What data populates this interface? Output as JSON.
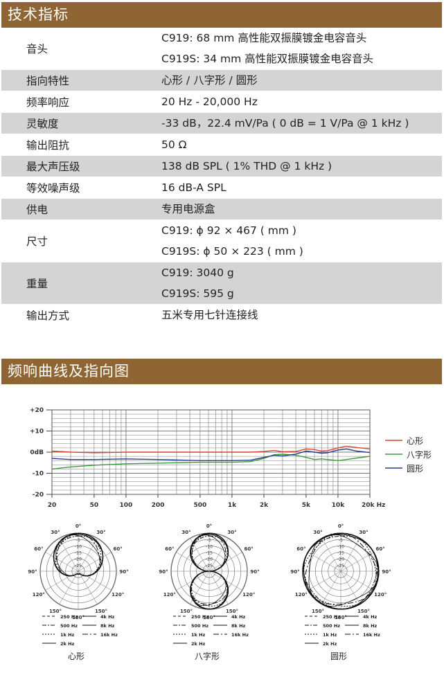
{
  "sections": {
    "specs_title": "技术指标",
    "curves_title": "频响曲线及指向图"
  },
  "specs": [
    {
      "label": "音头",
      "values": [
        "C919: 68 mm 高性能双振膜镀金电容音头",
        "C919S: 34 mm 高性能双振膜镀金电容音头"
      ]
    },
    {
      "label": "指向特性",
      "values": [
        "心形 / 八字形 / 圆形"
      ]
    },
    {
      "label": "频率响应",
      "values": [
        "20 Hz - 20,000 Hz"
      ]
    },
    {
      "label": "灵敏度",
      "values": [
        "-33 dB，22.4 mV/Pa ( 0 dB = 1 V/Pa @ 1 kHz )"
      ]
    },
    {
      "label": "输出阻抗",
      "values": [
        "50 Ω"
      ]
    },
    {
      "label": "最大声压级",
      "values": [
        "138 dB SPL ( 1% THD @ 1 kHz )"
      ]
    },
    {
      "label": "等效噪声级",
      "values": [
        "16 dB-A SPL"
      ]
    },
    {
      "label": "供电",
      "values": [
        "专用电源盒"
      ]
    },
    {
      "label": "尺寸",
      "values": [
        "C919: ϕ 92 × 467 ( mm )",
        "C919S: ϕ 50 × 223 ( mm )"
      ]
    },
    {
      "label": "重量",
      "values": [
        "C919: 3040 g",
        "C919S: 595 g"
      ]
    },
    {
      "label": "输出方式",
      "values": [
        "五米专用七针连接线"
      ]
    }
  ],
  "chart_data": [
    {
      "type": "line",
      "x_scale": "log",
      "xlim": [
        20,
        20000
      ],
      "ylim": [
        -20,
        20
      ],
      "x_ticks": [
        20,
        50,
        100,
        200,
        500,
        1000,
        2000,
        5000,
        10000,
        20000
      ],
      "x_tick_labels": [
        "20",
        "50",
        "100",
        "200",
        "500",
        "1k",
        "2k",
        "5k",
        "10k",
        "20k Hz"
      ],
      "y_ticks": [
        20,
        10,
        0,
        -10,
        -20
      ],
      "y_tick_labels": [
        "+20",
        "+10",
        "0dB",
        "-10",
        "-20"
      ],
      "grid": true,
      "legend_position": "right",
      "series": [
        {
          "name": "心形",
          "color": "#d9452b",
          "x": [
            20,
            30,
            50,
            100,
            200,
            500,
            1000,
            1500,
            2000,
            2500,
            3000,
            4000,
            5000,
            6000,
            7000,
            8000,
            10000,
            12000,
            15000,
            20000
          ],
          "y": [
            0.5,
            0,
            -0.3,
            0,
            0,
            0,
            0,
            0,
            0.3,
            0.8,
            0.2,
            0.3,
            1.5,
            1.2,
            0.5,
            0.7,
            2.0,
            2.8,
            2.2,
            1.5
          ]
        },
        {
          "name": "八字形",
          "color": "#3a9a3a",
          "x": [
            20,
            30,
            50,
            100,
            200,
            500,
            1000,
            1500,
            2000,
            2500,
            3000,
            4000,
            5000,
            6000,
            7000,
            8000,
            10000,
            12000,
            15000,
            20000
          ],
          "y": [
            -8,
            -7,
            -6.2,
            -5.5,
            -5.2,
            -4.8,
            -4.8,
            -4.5,
            -3.0,
            -1.2,
            -1.0,
            -1.5,
            -2.5,
            -3.5,
            -3.2,
            -3.5,
            -4.0,
            -3.5,
            -2.8,
            -2.0
          ]
        },
        {
          "name": "圆形",
          "color": "#2a3a8a",
          "x": [
            20,
            30,
            50,
            100,
            200,
            500,
            1000,
            1500,
            2000,
            2500,
            3000,
            4000,
            5000,
            6000,
            7000,
            8000,
            10000,
            12000,
            15000,
            20000
          ],
          "y": [
            -3,
            -3.5,
            -3.5,
            -3.2,
            -3.5,
            -4,
            -4,
            -3.8,
            -2.5,
            -1.5,
            -1.8,
            -1.0,
            0.5,
            0,
            -0.5,
            -0.3,
            1.0,
            1.5,
            0.5,
            -0.2
          ]
        }
      ]
    },
    {
      "type": "polar",
      "pattern": "cardioid",
      "label": "心形",
      "angle_labels": [
        "0°",
        "30°",
        "60°",
        "90°",
        "120°",
        "150°",
        "180°",
        "150°",
        "120°",
        "90°",
        "60°",
        "30°"
      ],
      "ring_labels": [
        "-5",
        "-10",
        "-15",
        "-20",
        "-25"
      ],
      "legend": [
        "250 Hz",
        "4k Hz",
        "500 Hz",
        "8k Hz",
        "1k Hz",
        "16k Hz",
        "2k Hz"
      ]
    },
    {
      "type": "polar",
      "pattern": "figure-eight",
      "label": "八字形",
      "angle_labels": [
        "0°",
        "30°",
        "60°",
        "90°",
        "120°",
        "150°",
        "180°",
        "150°",
        "120°",
        "90°",
        "60°",
        "30°"
      ],
      "ring_labels": [
        "-5",
        "-10",
        "-15",
        "-20",
        "-25"
      ],
      "legend": [
        "250 Hz",
        "4k Hz",
        "500 Hz",
        "8k Hz",
        "1k Hz",
        "16k Hz",
        "2k Hz"
      ]
    },
    {
      "type": "polar",
      "pattern": "omni",
      "label": "圆形",
      "angle_labels": [
        "0°",
        "30°",
        "60°",
        "90°",
        "120°",
        "150°",
        "180°",
        "150°",
        "120°",
        "90°",
        "60°",
        "30°"
      ],
      "ring_labels": [
        "-5",
        "-10",
        "-15",
        "-20",
        "-25"
      ],
      "legend": [
        "250 Hz",
        "4k Hz",
        "500 Hz",
        "8k Hz",
        "1k Hz",
        "16k Hz",
        "2k Hz"
      ]
    }
  ]
}
